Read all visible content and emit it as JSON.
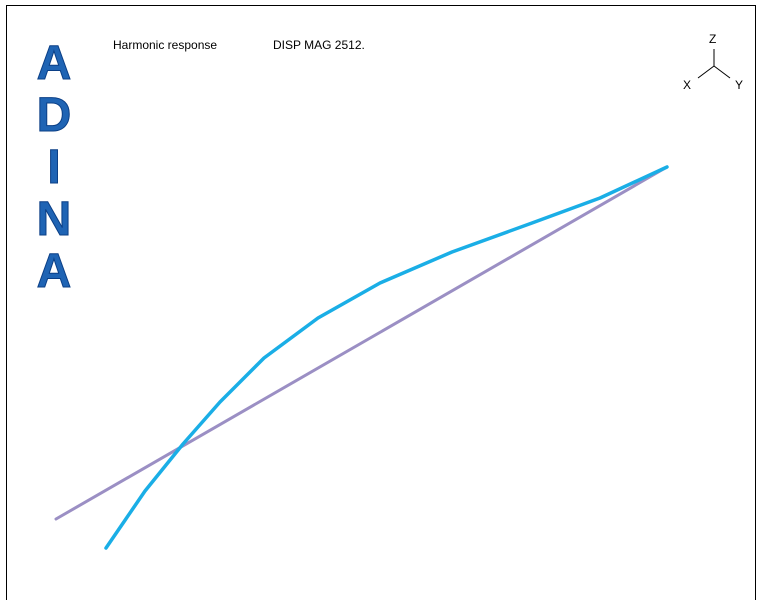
{
  "logo": {
    "letters": [
      "A",
      "D",
      "I",
      "N",
      "A"
    ],
    "color": "#1f64b4"
  },
  "header": {
    "title": "Harmonic response",
    "result": "DISP MAG 2512."
  },
  "triad": {
    "z": "Z",
    "x": "X",
    "y": "Y"
  },
  "colors": {
    "response_curve": "#1aaee6",
    "reference_line": "#9b8fc4",
    "frame": "#000000"
  }
}
